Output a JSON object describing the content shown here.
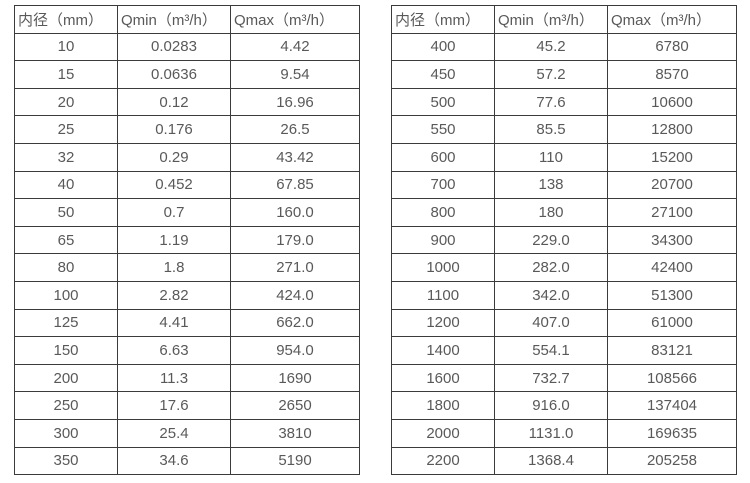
{
  "page": {
    "background_color": "#ffffff",
    "border_color": "#3b3b3b",
    "text_color": "#595959"
  },
  "tables": [
    {
      "name": "flow-rate-table-small-diameters",
      "headers": [
        "内径（mm）",
        "Qmin（m³/h）",
        "Qmax（m³/h）"
      ],
      "rows": [
        [
          "10",
          "0.0283",
          "4.42"
        ],
        [
          "15",
          "0.0636",
          "9.54"
        ],
        [
          "20",
          "0.12",
          "16.96"
        ],
        [
          "25",
          "0.176",
          "26.5"
        ],
        [
          "32",
          "0.29",
          "43.42"
        ],
        [
          "40",
          "0.452",
          "67.85"
        ],
        [
          "50",
          "0.7",
          "160.0"
        ],
        [
          "65",
          "1.19",
          "179.0"
        ],
        [
          "80",
          "1.8",
          "271.0"
        ],
        [
          "100",
          "2.82",
          "424.0"
        ],
        [
          "125",
          "4.41",
          "662.0"
        ],
        [
          "150",
          "6.63",
          "954.0"
        ],
        [
          "200",
          "11.3",
          "1690"
        ],
        [
          "250",
          "17.6",
          "2650"
        ],
        [
          "300",
          "25.4",
          "3810"
        ],
        [
          "350",
          "34.6",
          "5190"
        ]
      ]
    },
    {
      "name": "flow-rate-table-large-diameters",
      "headers": [
        "内径（mm）",
        "Qmin（m³/h）",
        "Qmax（m³/h）"
      ],
      "rows": [
        [
          "400",
          "45.2",
          "6780"
        ],
        [
          "450",
          "57.2",
          "8570"
        ],
        [
          "500",
          "77.6",
          "10600"
        ],
        [
          "550",
          "85.5",
          "12800"
        ],
        [
          "600",
          "110",
          "15200"
        ],
        [
          "700",
          "138",
          "20700"
        ],
        [
          "800",
          "180",
          "27100"
        ],
        [
          "900",
          "229.0",
          "34300"
        ],
        [
          "1000",
          "282.0",
          "42400"
        ],
        [
          "1100",
          "342.0",
          "51300"
        ],
        [
          "1200",
          "407.0",
          "61000"
        ],
        [
          "1400",
          "554.1",
          "83121"
        ],
        [
          "1600",
          "732.7",
          "108566"
        ],
        [
          "1800",
          "916.0",
          "137404"
        ],
        [
          "2000",
          "1131.0",
          "169635"
        ],
        [
          "2200",
          "1368.4",
          "205258"
        ]
      ]
    }
  ]
}
